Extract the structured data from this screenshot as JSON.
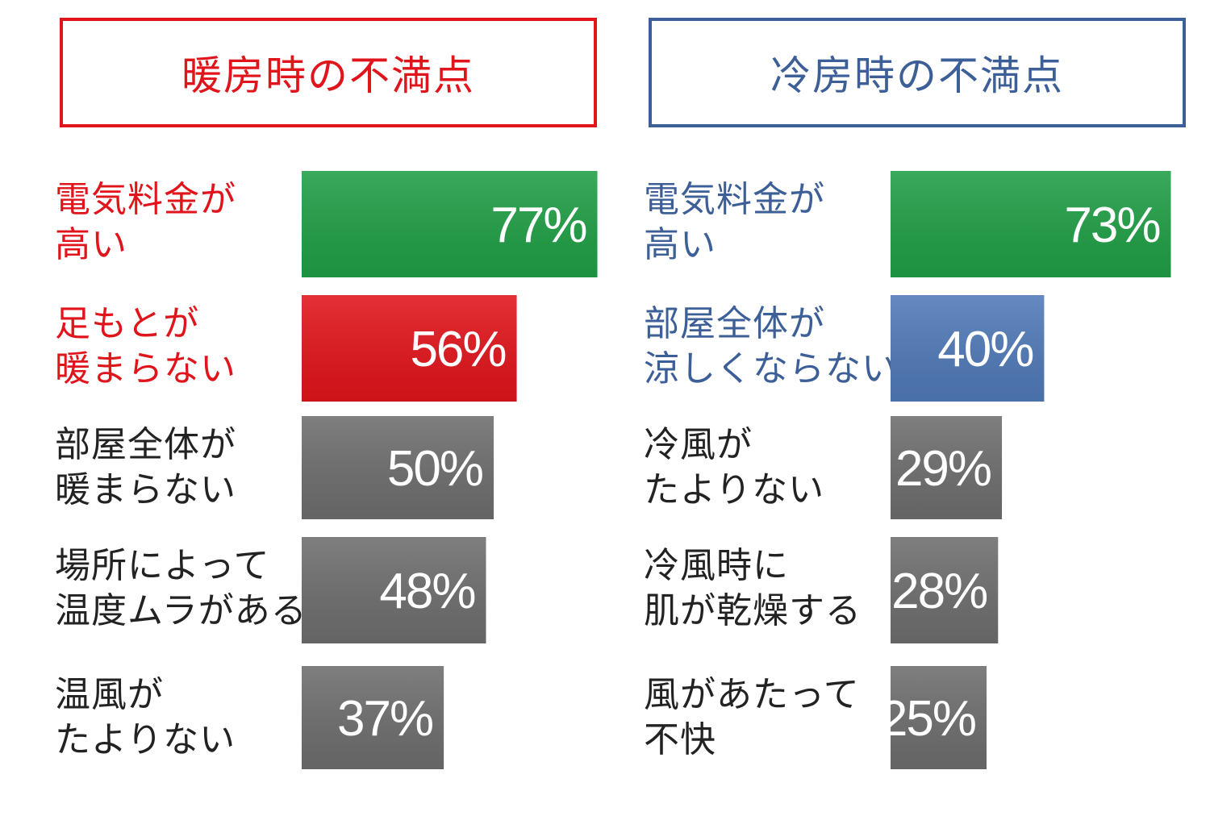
{
  "chart_data": [
    {
      "type": "bar",
      "orientation": "horizontal",
      "title": "暖房時の不満点",
      "title_color": "#e0141b",
      "categories": [
        [
          "電気料金が",
          "高い"
        ],
        [
          "足もとが",
          "暖まらない"
        ],
        [
          "部屋全体が",
          "暖まらない"
        ],
        [
          "場所によって",
          "温度ムラがある"
        ],
        [
          "温風が",
          "たよりない"
        ]
      ],
      "label_colors": [
        "#e0141b",
        "#e0141b",
        "#222222",
        "#222222",
        "#222222"
      ],
      "values": [
        77,
        56,
        50,
        48,
        37
      ],
      "value_labels": [
        "77%",
        "56%",
        "50%",
        "48%",
        "37%"
      ],
      "bar_colors": [
        "#1f9e45",
        "#e0141b",
        "#6d6d6d",
        "#6d6d6d",
        "#6d6d6d"
      ],
      "unit": "%"
    },
    {
      "type": "bar",
      "orientation": "horizontal",
      "title": "冷房時の不満点",
      "title_color": "#3d5f97",
      "categories": [
        [
          "電気料金が",
          "高い"
        ],
        [
          "部屋全体が",
          "涼しくならない"
        ],
        [
          "冷風が",
          "たよりない"
        ],
        [
          "冷風時に",
          "肌が乾燥する"
        ],
        [
          "風があたって",
          "不快"
        ]
      ],
      "label_colors": [
        "#3d5f97",
        "#3d5f97",
        "#222222",
        "#222222",
        "#222222"
      ],
      "values": [
        73,
        40,
        29,
        28,
        25
      ],
      "value_labels": [
        "73%",
        "40%",
        "29%",
        "28%",
        "25%"
      ],
      "bar_colors": [
        "#1f9e45",
        "#5079b7",
        "#6d6d6d",
        "#6d6d6d",
        "#6d6d6d"
      ],
      "unit": "%"
    }
  ]
}
